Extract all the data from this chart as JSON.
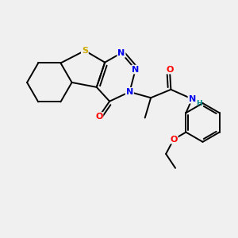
{
  "background_color": "#f0f0f0",
  "atom_colors": {
    "S": "#ccaa00",
    "N": "#0000ee",
    "O": "#ff0000",
    "C": "#000000",
    "H": "#008888"
  },
  "bond_color": "#000000",
  "figsize": [
    3.0,
    3.0
  ],
  "dpi": 100
}
